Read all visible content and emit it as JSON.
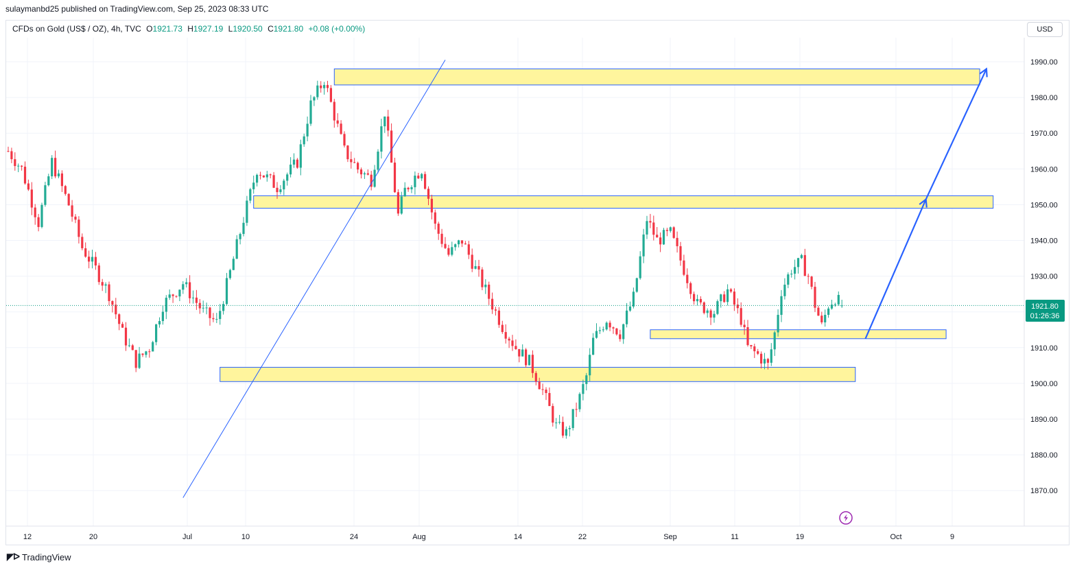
{
  "header": {
    "publisher": "sulaymanbd25 published on TradingView.com, Sep 25, 2023 08:33 UTC"
  },
  "legend": {
    "symbol": "CFDs on Gold (US$ / OZ), 4h, TVC",
    "o_label": "O",
    "o_value": "1921.73",
    "h_label": "H",
    "h_value": "1927.19",
    "l_label": "L",
    "l_value": "1920.50",
    "c_label": "C",
    "c_value": "1921.80",
    "change": "+0.08 (+0.00%)"
  },
  "currency": "USD",
  "price_badge": {
    "price": "1921.80",
    "countdown": "01:26:36"
  },
  "footer": {
    "brand": "TradingView"
  },
  "colors": {
    "up": "#22ab94",
    "down": "#f23645",
    "zone_fill": "#fff59d",
    "zone_stroke": "#2962ff",
    "line": "#2962ff",
    "badge": "#089981"
  },
  "chart_data": {
    "type": "candlestick",
    "y_ticks": [
      "1990.00",
      "1980.00",
      "1970.00",
      "1960.00",
      "1950.00",
      "1940.00",
      "1930.00",
      "1920.00",
      "1910.00",
      "1900.00",
      "1890.00",
      "1880.00",
      "1870.00"
    ],
    "ylim": [
      1862,
      1997
    ],
    "x_ticks": [
      "12",
      "20",
      "Jul",
      "10",
      "24",
      "Aug",
      "14",
      "22",
      "Sep",
      "11",
      "19",
      "Oct",
      "9"
    ],
    "close_path": [
      [
        0,
        1965
      ],
      [
        4,
        1960
      ],
      [
        9,
        1945
      ],
      [
        13,
        1962
      ],
      [
        18,
        1950
      ],
      [
        22,
        1938
      ],
      [
        26,
        1932
      ],
      [
        30,
        1925
      ],
      [
        34,
        1914
      ],
      [
        38,
        1906
      ],
      [
        42,
        1910
      ],
      [
        46,
        1922
      ],
      [
        52,
        1928
      ],
      [
        58,
        1920
      ],
      [
        62,
        1917
      ],
      [
        66,
        1931
      ],
      [
        70,
        1946
      ],
      [
        74,
        1960
      ],
      [
        80,
        1955
      ],
      [
        86,
        1962
      ],
      [
        90,
        1978
      ],
      [
        94,
        1985
      ],
      [
        97,
        1975
      ],
      [
        100,
        1965
      ],
      [
        104,
        1960
      ],
      [
        108,
        1957
      ],
      [
        112,
        1976
      ],
      [
        116,
        1947
      ],
      [
        118,
        1954
      ],
      [
        121,
        1958
      ],
      [
        123,
        1960
      ],
      [
        125,
        1952
      ],
      [
        127,
        1944
      ],
      [
        131,
        1936
      ],
      [
        135,
        1940
      ],
      [
        139,
        1932
      ],
      [
        143,
        1924
      ],
      [
        147,
        1916
      ],
      [
        151,
        1910
      ],
      [
        155,
        1906
      ],
      [
        159,
        1898
      ],
      [
        163,
        1888
      ],
      [
        166,
        1886
      ],
      [
        170,
        1896
      ],
      [
        172,
        1902
      ],
      [
        174,
        1912
      ],
      [
        178,
        1918
      ],
      [
        182,
        1914
      ],
      [
        186,
        1924
      ],
      [
        190,
        1946
      ],
      [
        193,
        1940
      ],
      [
        197,
        1942
      ],
      [
        201,
        1932
      ],
      [
        205,
        1922
      ],
      [
        210,
        1920
      ],
      [
        214,
        1926
      ],
      [
        218,
        1918
      ],
      [
        220,
        1910
      ],
      [
        223,
        1908
      ],
      [
        226,
        1905
      ],
      [
        228,
        1914
      ],
      [
        230,
        1926
      ],
      [
        233,
        1932
      ],
      [
        236,
        1934
      ],
      [
        238,
        1930
      ],
      [
        240,
        1922
      ],
      [
        242,
        1916
      ],
      [
        244,
        1922
      ],
      [
        246,
        1924
      ],
      [
        248,
        1921.8
      ]
    ],
    "last_index": 248,
    "zones": [
      {
        "from": 97,
        "to": 289,
        "low": 1983.5,
        "high": 1988
      },
      {
        "from": 73,
        "to": 293,
        "low": 1949,
        "high": 1952.5
      },
      {
        "from": 191,
        "to": 279,
        "low": 1912.5,
        "high": 1915
      },
      {
        "from": 63,
        "to": 252,
        "low": 1900.5,
        "high": 1904.5
      }
    ],
    "trendline": {
      "from": [
        52,
        1868
      ],
      "to": [
        130,
        1990.5
      ]
    },
    "projection": [
      [
        255,
        1912.5
      ],
      [
        273,
        1951.5
      ],
      [
        291,
        1988
      ]
    ]
  }
}
